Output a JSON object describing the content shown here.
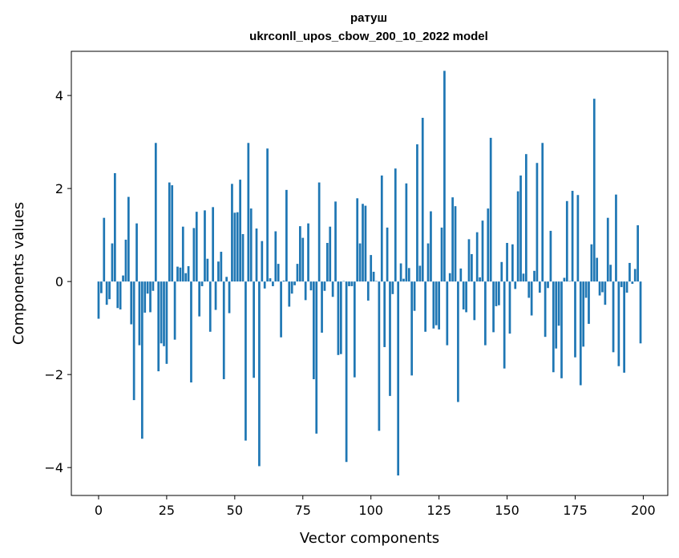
{
  "chart_data": {
    "type": "bar",
    "title": "ратуш",
    "subtitle": "ukrconll_upos_cbow_200_10_2022 model",
    "xlabel": "Vector components",
    "ylabel": "Components values",
    "xlim": [
      -10,
      209
    ],
    "ylim": [
      -4.6,
      4.95
    ],
    "xticks": [
      0,
      25,
      50,
      75,
      100,
      125,
      150,
      175,
      200
    ],
    "yticks": [
      -4,
      -2,
      0,
      2,
      4
    ],
    "ytick_labels": [
      "−4",
      "−2",
      "0",
      "2",
      "4"
    ],
    "bar_color": "#1f77b4",
    "grid": false,
    "values": [
      -0.8,
      -0.25,
      1.37,
      -0.5,
      -0.38,
      0.82,
      2.33,
      -0.57,
      -0.6,
      0.13,
      0.9,
      1.82,
      -0.92,
      -2.55,
      1.25,
      -1.37,
      -3.38,
      -0.67,
      -0.26,
      -0.66,
      -0.2,
      2.98,
      -1.93,
      -1.33,
      -1.39,
      -1.77,
      2.13,
      2.07,
      -1.25,
      0.32,
      0.3,
      1.18,
      0.18,
      0.33,
      -2.17,
      1.15,
      1.5,
      -0.75,
      -0.1,
      1.53,
      0.49,
      -1.08,
      1.6,
      -0.61,
      0.43,
      0.64,
      -2.1,
      0.1,
      -0.68,
      2.1,
      1.48,
      1.49,
      2.19,
      1.02,
      -3.42,
      2.98,
      1.57,
      -2.07,
      1.14,
      -3.97,
      0.87,
      -0.15,
      2.86,
      0.07,
      -0.1,
      1.08,
      0.38,
      -1.2,
      0.02,
      1.97,
      -0.54,
      -0.26,
      -0.08,
      0.38,
      1.19,
      0.94,
      -0.4,
      1.25,
      -0.19,
      -2.1,
      -3.27,
      2.13,
      -1.1,
      -0.2,
      0.83,
      1.18,
      -0.33,
      1.72,
      -1.58,
      -1.56,
      0.01,
      -3.88,
      -0.1,
      -0.1,
      -2.06,
      1.79,
      0.82,
      1.67,
      1.63,
      -0.41,
      0.57,
      0.21,
      0.01,
      -3.21,
      2.28,
      -1.41,
      1.16,
      -2.46,
      -0.27,
      2.43,
      -4.17,
      0.39,
      0.06,
      2.11,
      0.29,
      -2.02,
      -0.63,
      2.95,
      0.34,
      3.52,
      -1.08,
      0.82,
      1.51,
      -1.01,
      -0.94,
      -1.03,
      1.16,
      4.53,
      -1.37,
      0.18,
      1.81,
      1.62,
      -2.59,
      0.28,
      -0.6,
      -0.66,
      0.91,
      0.59,
      -0.83,
      1.06,
      0.09,
      1.31,
      -1.37,
      1.57,
      3.09,
      -1.09,
      -0.53,
      -0.51,
      0.42,
      -1.87,
      0.83,
      -1.12,
      0.8,
      -0.16,
      1.94,
      2.28,
      0.17,
      2.74,
      -0.35,
      -0.73,
      0.23,
      2.55,
      -0.24,
      2.98,
      -1.19,
      -0.14,
      1.09,
      -1.95,
      -1.44,
      -0.95,
      -2.08,
      0.08,
      1.73,
      0.01,
      1.95,
      -1.63,
      1.86,
      -2.23,
      -1.4,
      -0.35,
      -0.91,
      0.8,
      3.93,
      0.51,
      -0.3,
      -0.23,
      -0.5,
      1.37,
      0.36,
      -1.52,
      1.87,
      -1.82,
      -0.12,
      -1.96,
      -0.24,
      0.4,
      -0.05,
      0.27,
      1.21,
      -1.33
    ]
  }
}
